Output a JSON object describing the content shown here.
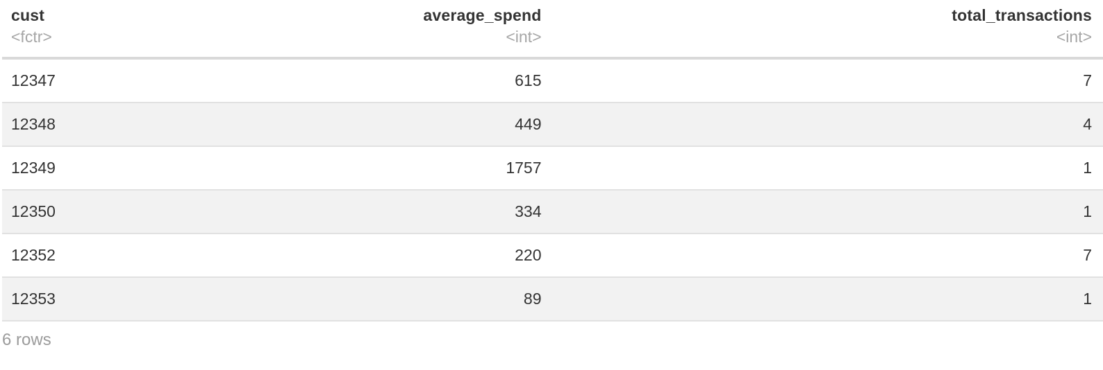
{
  "table": {
    "columns": [
      {
        "name": "cust",
        "type": "<fctr>",
        "align": "left"
      },
      {
        "name": "average_spend",
        "type": "<int>",
        "align": "right"
      },
      {
        "name": "total_transactions",
        "type": "<int>",
        "align": "right"
      }
    ],
    "rows": [
      [
        "12347",
        "615",
        "7"
      ],
      [
        "12348",
        "449",
        "4"
      ],
      [
        "12349",
        "1757",
        "1"
      ],
      [
        "12350",
        "334",
        "1"
      ],
      [
        "12352",
        "220",
        "7"
      ],
      [
        "12353",
        "89",
        "1"
      ]
    ],
    "caption": "6 rows"
  },
  "colors": {
    "text": "#333333",
    "muted": "#a6a6a6",
    "muted_caption": "#9b9b9b",
    "stripe": "#f2f2f2",
    "row_border": "#e1e1e1",
    "header_border": "#d9d9d9",
    "background": "#ffffff"
  }
}
